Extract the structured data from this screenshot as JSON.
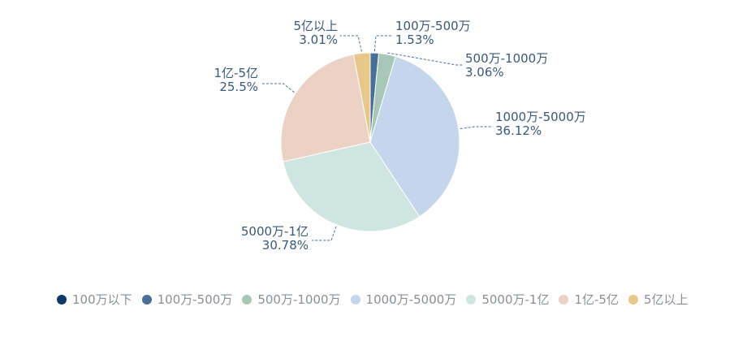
{
  "chart_data": {
    "type": "pie",
    "categories": [
      "100万以下",
      "100万-500万",
      "500万-1000万",
      "1000万-5000万",
      "5000万-1亿",
      "1亿-5亿",
      "5亿以上"
    ],
    "values": [
      0,
      1.53,
      3.06,
      36.12,
      30.78,
      25.5,
      3.01
    ],
    "labels": [
      "",
      "1.53%",
      "3.06%",
      "36.12%",
      "30.78%",
      "25.5%",
      "3.01%"
    ],
    "colors": [
      "#0f3a66",
      "#4a6f96",
      "#a9c7b8",
      "#c5d6ec",
      "#cfe5df",
      "#ebd2c4",
      "#e8c88a"
    ],
    "legend_position": "bottom",
    "start_angle": "top, clockwise"
  }
}
